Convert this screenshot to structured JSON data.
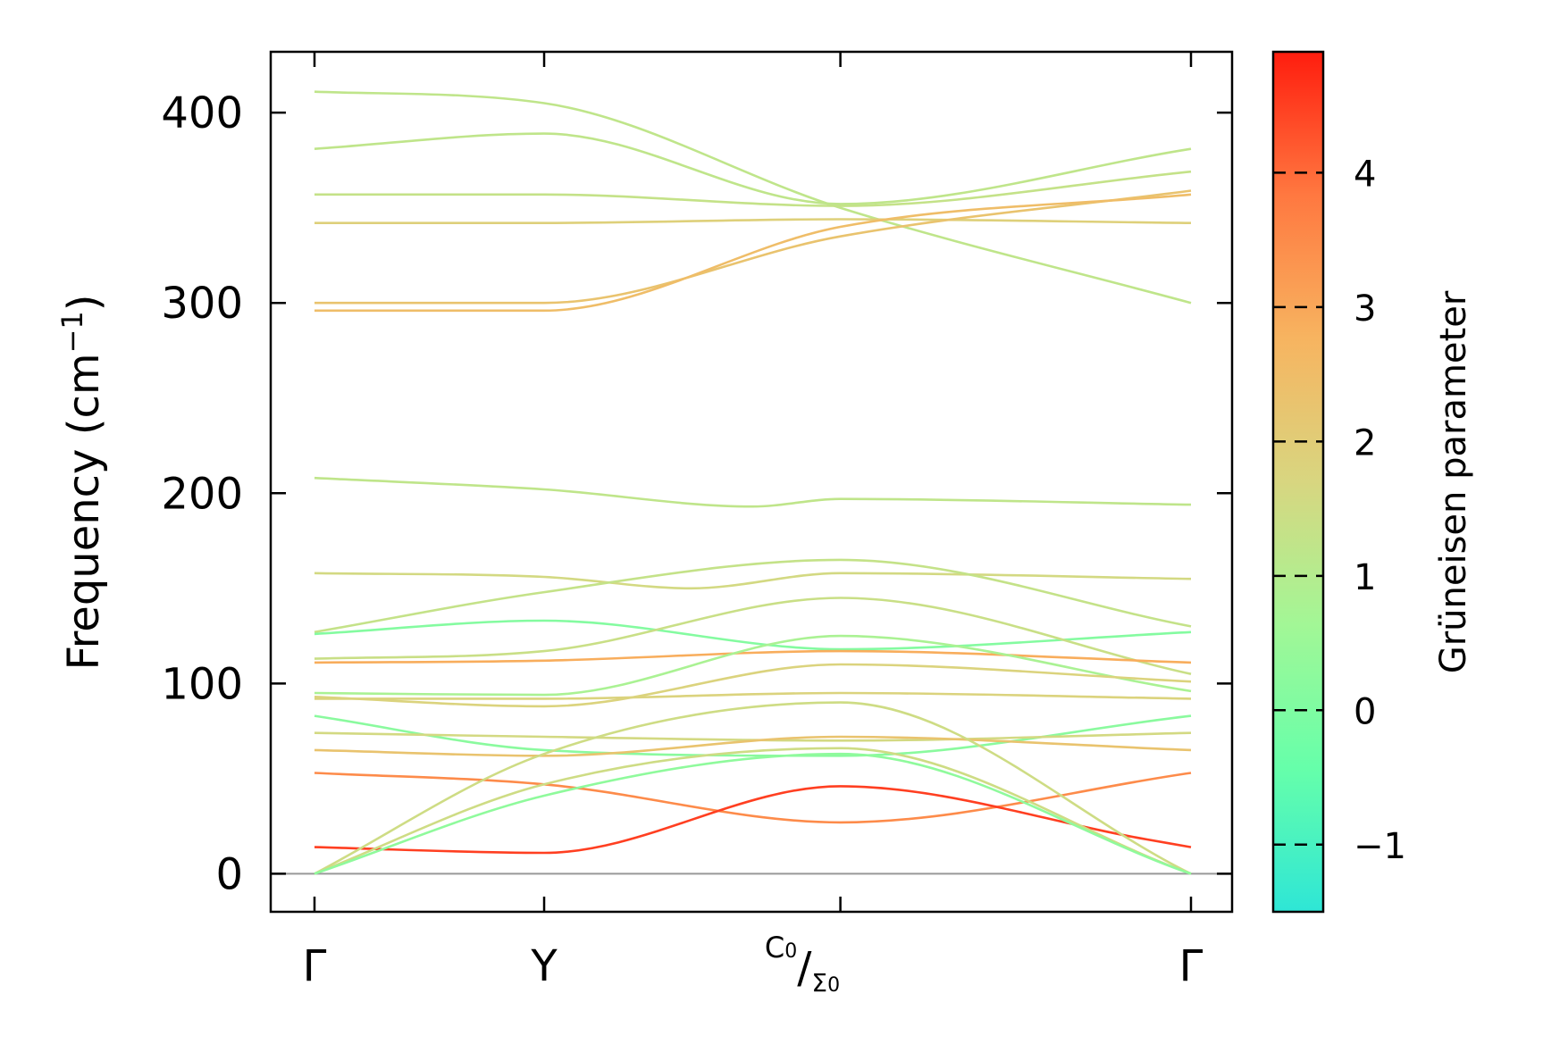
{
  "chart_data": {
    "type": "line",
    "title": "",
    "ylabel": "Frequency (cm$^{-1}$)",
    "ylabel_text": {
      "main": "Frequency (cm",
      "sup": "−1",
      "close": ")"
    },
    "ylim": [
      -20,
      432
    ],
    "yticks": [
      0,
      100,
      200,
      300,
      400
    ],
    "ytick_labels": [
      "0",
      "100",
      "200",
      "300",
      "400"
    ],
    "x_path": {
      "positions": [
        0,
        0.262,
        0.6,
        1.0
      ],
      "labels": [
        "Γ",
        "Y",
        "",
        "Γ"
      ],
      "special_label": {
        "main": "C",
        "sub_main": "0",
        "denom": "Σ",
        "sub_denom": "0"
      }
    },
    "zero_line": 0,
    "colorbar": {
      "label": "Grüneisen parameter",
      "range": [
        -1.5,
        4.9
      ],
      "ticks": [
        -1,
        0,
        1,
        2,
        3,
        4
      ],
      "tick_labels": [
        "−1",
        "0",
        "1",
        "2",
        "3",
        "4"
      ],
      "colors": [
        "#2ee6d6",
        "#66ffaa",
        "#a2f796",
        "#d8d680",
        "#f7b460",
        "#ff7840",
        "#ff1d0e"
      ]
    },
    "series": [
      {
        "name": "b1",
        "gamma": 1.2,
        "x": [
          0,
          0.262,
          0.6,
          1.0
        ],
        "y": [
          411,
          405,
          350,
          300
        ]
      },
      {
        "name": "b2",
        "gamma": 1.2,
        "x": [
          0,
          0.262,
          0.6,
          1.0
        ],
        "y": [
          381,
          389,
          352,
          381
        ]
      },
      {
        "name": "b3",
        "gamma": 1.3,
        "x": [
          0,
          0.262,
          0.6,
          1.0
        ],
        "y": [
          357,
          357,
          351,
          369
        ]
      },
      {
        "name": "b4",
        "gamma": 1.9,
        "x": [
          0,
          0.262,
          0.6,
          1.0
        ],
        "y": [
          342,
          342,
          344,
          342
        ]
      },
      {
        "name": "b5",
        "gamma": 2.3,
        "x": [
          0,
          0.262,
          0.6,
          1.0
        ],
        "y": [
          300,
          300,
          335,
          359
        ]
      },
      {
        "name": "b6",
        "gamma": 2.5,
        "x": [
          0,
          0.262,
          0.6,
          1.0
        ],
        "y": [
          296,
          296,
          340,
          357
        ]
      },
      {
        "name": "b7",
        "gamma": 1.2,
        "x": [
          0,
          0.262,
          0.5,
          0.6,
          1.0
        ],
        "y": [
          208,
          202,
          193,
          197,
          194
        ]
      },
      {
        "name": "b8",
        "gamma": 1.6,
        "x": [
          0,
          0.262,
          0.43,
          0.6,
          1.0
        ],
        "y": [
          158,
          156,
          150,
          158,
          155
        ]
      },
      {
        "name": "b9",
        "gamma": 1.3,
        "x": [
          0,
          0.262,
          0.6,
          1.0
        ],
        "y": [
          127,
          148,
          165,
          130
        ]
      },
      {
        "name": "b10",
        "gamma": 0.1,
        "x": [
          0,
          0.262,
          0.6,
          1.0
        ],
        "y": [
          126,
          133,
          118,
          127
        ]
      },
      {
        "name": "b11",
        "gamma": 1.4,
        "x": [
          0,
          0.262,
          0.6,
          1.0
        ],
        "y": [
          113,
          117,
          145,
          105
        ]
      },
      {
        "name": "b12",
        "gamma": 2.9,
        "x": [
          0,
          0.262,
          0.6,
          1.0
        ],
        "y": [
          111,
          112,
          117,
          111
        ]
      },
      {
        "name": "b13",
        "gamma": 0.8,
        "x": [
          0,
          0.262,
          0.6,
          1.0
        ],
        "y": [
          95,
          94,
          125,
          96
        ]
      },
      {
        "name": "b14",
        "gamma": 1.8,
        "x": [
          0,
          0.262,
          0.6,
          1.0
        ],
        "y": [
          93,
          88,
          110,
          101
        ]
      },
      {
        "name": "b15",
        "gamma": 1.8,
        "x": [
          0,
          0.262,
          0.6,
          1.0
        ],
        "y": [
          92,
          92,
          95,
          92
        ]
      },
      {
        "name": "b16",
        "gamma": 0.2,
        "x": [
          0,
          0.262,
          0.6,
          1.0
        ],
        "y": [
          83,
          65,
          62,
          83
        ]
      },
      {
        "name": "b17",
        "gamma": 1.6,
        "x": [
          0,
          0.262,
          0.6,
          1.0
        ],
        "y": [
          74,
          72,
          70,
          74
        ]
      },
      {
        "name": "b18",
        "gamma": 2.3,
        "x": [
          0,
          0.262,
          0.6,
          1.0
        ],
        "y": [
          65,
          62,
          72,
          65
        ]
      },
      {
        "name": "b19",
        "gamma": 3.5,
        "x": [
          0,
          0.262,
          0.6,
          1.0
        ],
        "y": [
          53,
          47,
          27,
          53
        ]
      },
      {
        "name": "b20",
        "gamma": 4.5,
        "x": [
          0,
          0.262,
          0.6,
          0.95,
          1.0
        ],
        "y": [
          14,
          11,
          46,
          18,
          14
        ]
      },
      {
        "name": "b21",
        "gamma": 1.5,
        "x": [
          0,
          0.262,
          0.6,
          1.0
        ],
        "y": [
          0,
          63,
          90,
          0
        ]
      },
      {
        "name": "b22",
        "gamma": 1.5,
        "x": [
          0,
          0.262,
          0.6,
          1.0
        ],
        "y": [
          0,
          47,
          66,
          0
        ]
      },
      {
        "name": "b23",
        "gamma": 0.3,
        "x": [
          0,
          0.262,
          0.6,
          1.0
        ],
        "y": [
          0,
          41,
          63,
          0
        ]
      }
    ]
  }
}
